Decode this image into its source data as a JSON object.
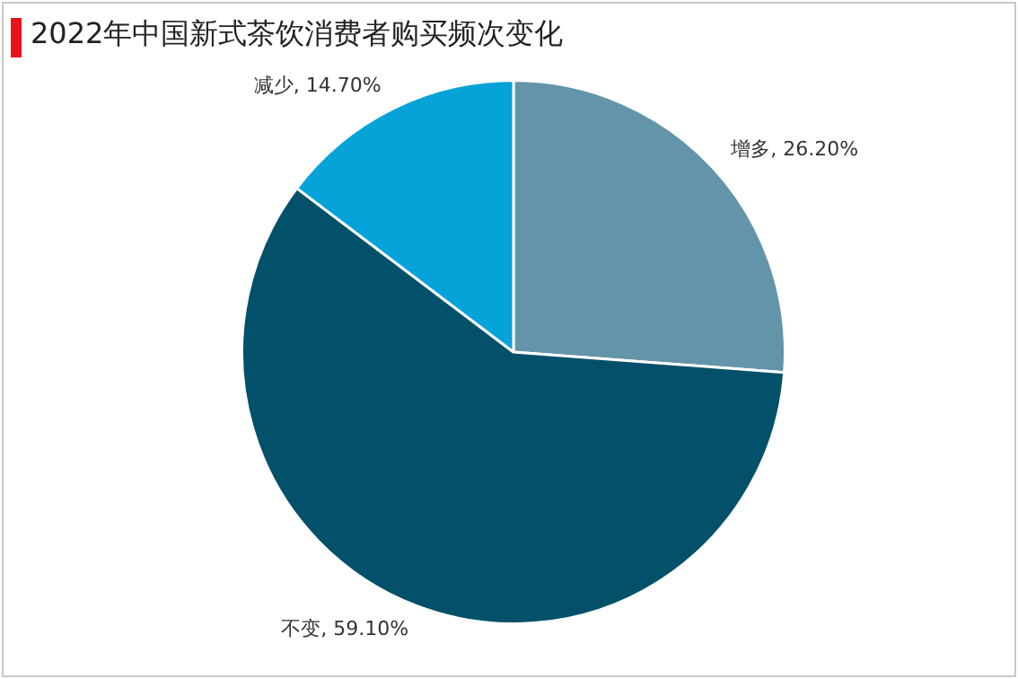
{
  "chart_data": {
    "type": "pie",
    "title": "2022年中国新式茶饮消费者购买频次变化",
    "categories": [
      "增多",
      "不变",
      "减少"
    ],
    "values": [
      26.2,
      59.1,
      14.7
    ],
    "value_labels": [
      "26.20%",
      "59.10%",
      "14.70%"
    ],
    "colors": [
      "#6494aa",
      "#03506a",
      "#06a3d9"
    ],
    "legend": false
  }
}
